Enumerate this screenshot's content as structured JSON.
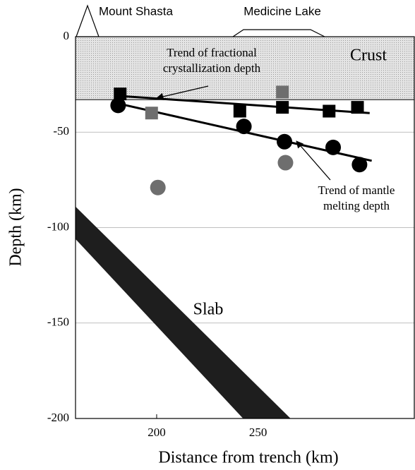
{
  "chart_data": {
    "type": "scatter",
    "xlabel": "Distance from trench (km)",
    "ylabel": "Depth (km)",
    "xlim": [
      160,
      327
    ],
    "ylim": [
      -200,
      0
    ],
    "xticks": [
      200,
      250
    ],
    "yticks": [
      0,
      -50,
      -100,
      -150,
      -200
    ],
    "grid": true,
    "volcanoes": [
      "Mount Shasta",
      "Medicine Lake"
    ],
    "crust": {
      "label": "Crust",
      "base": -33
    },
    "slab": {
      "label": "Slab",
      "upper_x": [
        160,
        266
      ],
      "upper_y": [
        -89,
        -200
      ],
      "lower_x": [
        160,
        242.6
      ],
      "lower_y": [
        -106,
        -200
      ]
    },
    "series": [
      {
        "marker": "circle",
        "color": "#000000",
        "x": [
          181,
          243,
          263,
          287,
          300
        ],
        "y": [
          -36,
          -47,
          -55,
          -58,
          -67
        ]
      },
      {
        "marker": "circle",
        "color": "#6e6e6e",
        "x": [
          200.6,
          263.5
        ],
        "y": [
          -79,
          -66
        ]
      },
      {
        "marker": "square",
        "color": "#000000",
        "x": [
          182,
          241,
          262,
          285,
          299
        ],
        "y": [
          -30,
          -39,
          -37,
          -39,
          -37
        ]
      },
      {
        "marker": "square",
        "color": "#6e6e6e",
        "x": [
          197.5,
          262
        ],
        "y": [
          -40,
          -29
        ]
      }
    ],
    "lines": [
      {
        "x": [
          181,
          305
        ],
        "y": [
          -31,
          -40
        ]
      },
      {
        "x": [
          181,
          306
        ],
        "y": [
          -35,
          -65
        ]
      }
    ],
    "annotations": [
      {
        "lines": [
          "Trend of fractional",
          "crystallization depth"
        ]
      },
      {
        "lines": [
          "Trend of mantle",
          "melting depth"
        ]
      }
    ]
  }
}
